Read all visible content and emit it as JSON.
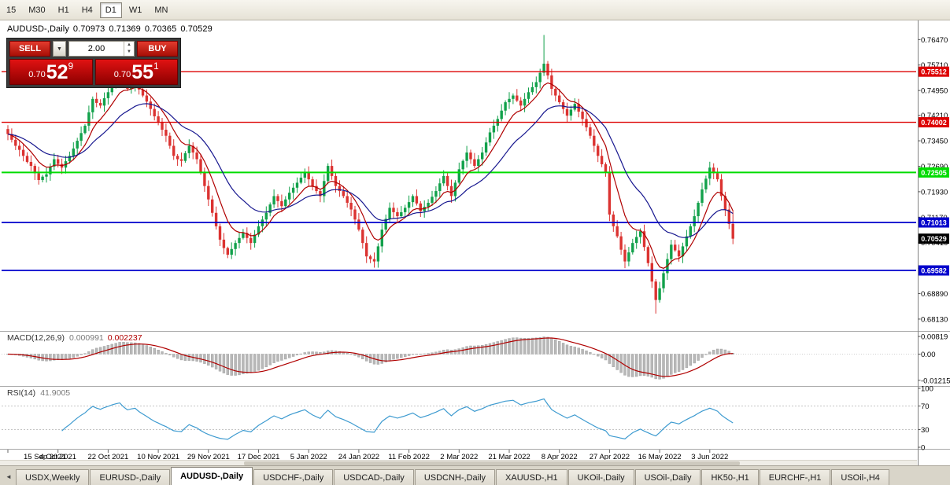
{
  "toolbar": {
    "timeframes": [
      {
        "label": "15",
        "active": false
      },
      {
        "label": "M30",
        "active": false
      },
      {
        "label": "H1",
        "active": false
      },
      {
        "label": "H4",
        "active": false
      },
      {
        "label": "D1",
        "active": true
      },
      {
        "label": "W1",
        "active": false
      },
      {
        "label": "MN",
        "active": false
      }
    ]
  },
  "header": {
    "symbol": "AUDUSD-,Daily",
    "open": "0.70973",
    "high": "0.71369",
    "low": "0.70365",
    "close": "0.70529"
  },
  "trade": {
    "sell_label": "SELL",
    "buy_label": "BUY",
    "volume": "2.00",
    "sell_price": {
      "small": "0.70",
      "big": "52",
      "sup": "9"
    },
    "buy_price": {
      "small": "0.70",
      "big": "55",
      "sup": "1"
    }
  },
  "macd_panel": {
    "name": "MACD(12,26,9)",
    "value_main": "0.000991",
    "value_signal": "0.002237"
  },
  "rsi_panel": {
    "name": "RSI(14)",
    "value": "41.9005"
  },
  "tabs": {
    "items": [
      {
        "label": "USDX,Weekly",
        "active": false
      },
      {
        "label": "EURUSD-,Daily",
        "active": false
      },
      {
        "label": "AUDUSD-,Daily",
        "active": true
      },
      {
        "label": "USDCHF-,Daily",
        "active": false
      },
      {
        "label": "USDCAD-,Daily",
        "active": false
      },
      {
        "label": "USDCNH-,Daily",
        "active": false
      },
      {
        "label": "XAUUSD-,H1",
        "active": false
      },
      {
        "label": "UKOil-,Daily",
        "active": false
      },
      {
        "label": "USOil-,Daily",
        "active": false
      },
      {
        "label": "HK50-,H1",
        "active": false
      },
      {
        "label": "EURCHF-,H1",
        "active": false
      },
      {
        "label": "USOil-,H4",
        "active": false
      }
    ]
  },
  "chart_data": {
    "type": "candlestick",
    "symbol": "AUDUSD-",
    "timeframe": "Daily",
    "ohlc_current": {
      "open": 0.70973,
      "high": 0.71369,
      "low": 0.70365,
      "close": 0.70529
    },
    "price_range": {
      "top": 0.769,
      "bottom": 0.678
    },
    "colors": {
      "bull": "#12A14B",
      "bear": "#DB3331",
      "ma_fast": "#B00000",
      "ma_slow": "#17178F",
      "rsi": "#3E9BD0",
      "hist": "#B8B8B8",
      "hist_edge": "#9A9A9A",
      "signal": "#B00000"
    },
    "y_ticks": [
      "0.76470",
      "0.75710",
      "0.74950",
      "0.74210",
      "0.73450",
      "0.72690",
      "0.71930",
      "0.71170",
      "0.70410",
      "0.69650",
      "0.68890",
      "0.68130"
    ],
    "levels": [
      {
        "price": 0.75512,
        "label": "0.75512",
        "color": "#DD0000",
        "width": 1.4
      },
      {
        "price": 0.74002,
        "label": "0.74002",
        "color": "#DD0000",
        "width": 1.4
      },
      {
        "price": 0.72505,
        "label": "0.72505",
        "color": "#00DC00",
        "width": 2
      },
      {
        "price": 0.71013,
        "label": "0.71013",
        "color": "#0000CC",
        "width": 1.8
      },
      {
        "price": 0.69582,
        "label": "0.69582",
        "color": "#0000CC",
        "width": 1.8
      }
    ],
    "current_price": {
      "value": 0.70529,
      "label": "0.70529",
      "color": "#000000"
    },
    "x_labels": [
      "15 Sep 2021",
      "4 Oct 2021",
      "22 Oct 2021",
      "10 Nov 2021",
      "29 Nov 2021",
      "17 Dec 2021",
      "5 Jan 2022",
      "24 Jan 2022",
      "11 Feb 2022",
      "2 Mar 2022",
      "21 Mar 2022",
      "8 Apr 2022",
      "27 Apr 2022",
      "16 May 2022",
      "3 Jun 2022"
    ],
    "x_label_step": 13,
    "first_open": 0.738,
    "closes": [
      0.7365,
      0.7348,
      0.733,
      0.7318,
      0.73,
      0.7282,
      0.727,
      0.7248,
      0.7228,
      0.7238,
      0.7245,
      0.7268,
      0.729,
      0.7276,
      0.7265,
      0.7284,
      0.73,
      0.7322,
      0.7345,
      0.7368,
      0.739,
      0.743,
      0.747,
      0.7458,
      0.745,
      0.7472,
      0.749,
      0.7512,
      0.753,
      0.7545,
      0.752,
      0.75,
      0.7512,
      0.752,
      0.7498,
      0.748,
      0.7462,
      0.744,
      0.7418,
      0.74,
      0.7378,
      0.736,
      0.733,
      0.73,
      0.729,
      0.7285,
      0.7308,
      0.733,
      0.731,
      0.729,
      0.725,
      0.721,
      0.717,
      0.713,
      0.709,
      0.705,
      0.7025,
      0.7005,
      0.7022,
      0.704,
      0.7055,
      0.707,
      0.7055,
      0.704,
      0.7065,
      0.709,
      0.711,
      0.713,
      0.7155,
      0.718,
      0.7165,
      0.715,
      0.717,
      0.719,
      0.7205,
      0.722,
      0.7235,
      0.725,
      0.723,
      0.721,
      0.7195,
      0.718,
      0.7225,
      0.727,
      0.724,
      0.721,
      0.7195,
      0.718,
      0.716,
      0.714,
      0.711,
      0.708,
      0.704,
      0.7,
      0.6992,
      0.6985,
      0.703,
      0.708,
      0.7112,
      0.7145,
      0.7132,
      0.712,
      0.7132,
      0.7145,
      0.7162,
      0.718,
      0.7158,
      0.7135,
      0.7148,
      0.716,
      0.7178,
      0.7195,
      0.7218,
      0.724,
      0.721,
      0.718,
      0.722,
      0.726,
      0.7285,
      0.731,
      0.729,
      0.727,
      0.729,
      0.731,
      0.734,
      0.737,
      0.739,
      0.741,
      0.7435,
      0.746,
      0.747,
      0.748,
      0.7465,
      0.745,
      0.747,
      0.749,
      0.7505,
      0.752,
      0.7548,
      0.7575,
      0.754,
      0.75,
      0.748,
      0.746,
      0.744,
      0.742,
      0.7438,
      0.7455,
      0.7432,
      0.741,
      0.7385,
      0.736,
      0.733,
      0.73,
      0.7275,
      0.725,
      0.7125,
      0.709,
      0.706,
      0.702,
      0.6985,
      0.7012,
      0.704,
      0.7058,
      0.7075,
      0.7028,
      0.698,
      0.6925,
      0.687,
      0.6905,
      0.695,
      0.6992,
      0.7035,
      0.7018,
      0.7,
      0.703,
      0.706,
      0.709,
      0.712,
      0.716,
      0.72,
      0.7232,
      0.7265,
      0.7248,
      0.723,
      0.718,
      0.714,
      0.7097,
      0.70529
    ],
    "overrides": {
      "29": {
        "h": 0.75554
      },
      "57": {
        "l": 0.69948
      },
      "95": {
        "l": 0.69664
      },
      "139": {
        "h": 0.76607
      },
      "168": {
        "l": 0.68294
      },
      "182": {
        "h": 0.72824
      },
      "188": {
        "o": 0.70973,
        "h": 0.71369,
        "l": 0.70365,
        "c": 0.70529
      }
    },
    "indicators": {
      "ma_fast_period": 8,
      "ma_slow_period": 21,
      "macd": {
        "fast": 12,
        "slow": 26,
        "signal": 9,
        "axis": [
          {
            "v": 0.00819,
            "label": "0.00819"
          },
          {
            "v": 0,
            "label": "0.00"
          },
          {
            "v": -0.01215,
            "label": "-0.01215"
          }
        ]
      },
      "rsi": {
        "period": 14,
        "axis": [
          {
            "v": 100,
            "label": "100"
          },
          {
            "v": 70,
            "label": "70"
          },
          {
            "v": 30,
            "label": "30"
          },
          {
            "v": 0,
            "label": "0"
          }
        ],
        "levels": [
          70,
          30
        ]
      }
    }
  }
}
